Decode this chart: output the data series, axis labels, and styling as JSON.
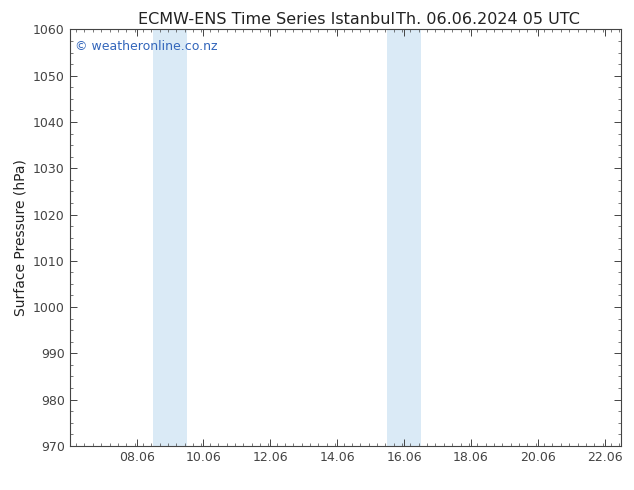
{
  "title_left": "ECMW-ENS Time Series Istanbul",
  "title_right": "Th. 06.06.2024 05 UTC",
  "ylabel": "Surface Pressure (hPa)",
  "ylim": [
    970,
    1060
  ],
  "yticks": [
    970,
    980,
    990,
    1000,
    1010,
    1020,
    1030,
    1040,
    1050,
    1060
  ],
  "xlim_start": 6.06,
  "xlim_end": 22.56,
  "xticks": [
    8.06,
    10.06,
    12.06,
    14.06,
    16.06,
    18.06,
    20.06,
    22.06
  ],
  "xtick_labels": [
    "08.06",
    "10.06",
    "12.06",
    "14.06",
    "16.06",
    "18.06",
    "20.06",
    "22.06"
  ],
  "shaded_regions": [
    {
      "xmin": 8.56,
      "xmax": 9.56
    },
    {
      "xmin": 15.56,
      "xmax": 16.56
    }
  ],
  "shade_color": "#daeaf6",
  "background_color": "#ffffff",
  "plot_bg_color": "#ffffff",
  "watermark": "© weatheronline.co.nz",
  "watermark_color": "#3366bb",
  "title_color": "#222222",
  "title_fontsize": 11.5,
  "ylabel_fontsize": 10,
  "tick_fontsize": 9,
  "watermark_fontsize": 9,
  "border_color": "#444444",
  "tick_color": "#444444"
}
